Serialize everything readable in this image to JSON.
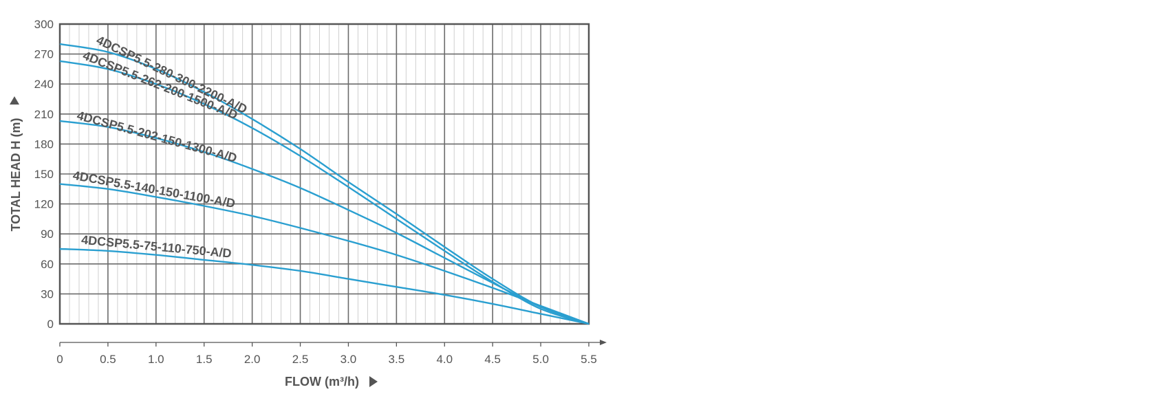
{
  "chart_data": {
    "type": "line",
    "xlabel": "FLOW (m³/h)",
    "ylabel": "TOTAL HEAD H (m)",
    "xlim": [
      0,
      5.5
    ],
    "ylim": [
      0,
      300
    ],
    "x_ticks": [
      "0",
      "0.5",
      "1.0",
      "1.5",
      "2.0",
      "2.5",
      "3.0",
      "3.5",
      "4.0",
      "4.5",
      "5.0",
      "5.5"
    ],
    "y_ticks": [
      "0",
      "30",
      "60",
      "90",
      "120",
      "150",
      "180",
      "210",
      "240",
      "270",
      "300"
    ],
    "grid": true,
    "series_color": "#2a9fd0",
    "series": [
      {
        "name": "4DCSP5.5-280-300-2200-A/D",
        "x": [
          0,
          0.5,
          1.0,
          1.5,
          2.0,
          2.5,
          3.0,
          3.5,
          4.0,
          4.5,
          5.0,
          5.5
        ],
        "y": [
          280,
          272,
          255,
          232,
          205,
          175,
          142,
          110,
          77,
          45,
          17,
          0
        ]
      },
      {
        "name": "4DCSP5.5-262-200-1500-A/D",
        "x": [
          0,
          0.5,
          1.0,
          1.5,
          2.0,
          2.5,
          3.0,
          3.5,
          4.0,
          4.5,
          5.0,
          5.5
        ],
        "y": [
          263,
          255,
          240,
          220,
          196,
          168,
          137,
          105,
          73,
          42,
          15,
          0
        ]
      },
      {
        "name": "4DCSP5.5-202-150-1300-A/D",
        "x": [
          0,
          0.5,
          1.0,
          1.5,
          2.0,
          2.5,
          3.0,
          3.5,
          4.0,
          4.5,
          5.0,
          5.5
        ],
        "y": [
          203,
          197,
          186,
          172,
          155,
          136,
          114,
          91,
          66,
          41,
          17,
          0
        ]
      },
      {
        "name": "4DCSP5.5-140-150-1100-A/D",
        "x": [
          0,
          0.5,
          1.0,
          1.5,
          2.0,
          2.5,
          3.0,
          3.5,
          4.0,
          4.5,
          5.0,
          5.5
        ],
        "y": [
          140,
          135,
          127,
          118,
          108,
          96,
          83,
          69,
          53,
          36,
          18,
          0
        ]
      },
      {
        "name": "4DCSP5.5-75-110-750-A/D",
        "x": [
          0,
          0.5,
          1.0,
          1.5,
          2.0,
          2.5,
          3.0,
          3.5,
          4.0,
          4.5,
          5.0,
          5.5
        ],
        "y": [
          75,
          73,
          69,
          64,
          59,
          53,
          45,
          37,
          29,
          20,
          10,
          0
        ]
      }
    ]
  }
}
